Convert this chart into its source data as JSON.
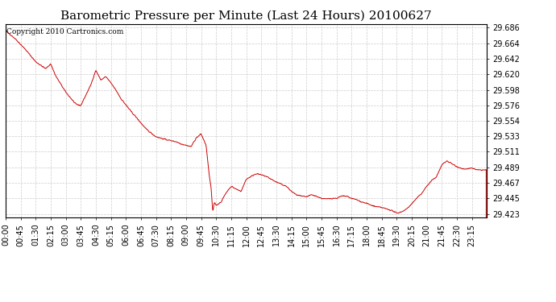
{
  "title": "Barometric Pressure per Minute (Last 24 Hours) 20100627",
  "copyright": "Copyright 2010 Cartronics.com",
  "line_color": "#cc0000",
  "background_color": "#ffffff",
  "grid_color": "#cccccc",
  "yticks": [
    29.423,
    29.445,
    29.467,
    29.489,
    29.511,
    29.533,
    29.554,
    29.576,
    29.598,
    29.62,
    29.642,
    29.664,
    29.686
  ],
  "ylim": [
    29.418,
    29.691
  ],
  "xtick_labels": [
    "00:00",
    "00:45",
    "01:30",
    "02:15",
    "03:00",
    "03:45",
    "04:30",
    "05:15",
    "06:00",
    "06:45",
    "07:30",
    "08:15",
    "09:00",
    "09:45",
    "10:30",
    "11:15",
    "12:00",
    "12:45",
    "13:30",
    "14:15",
    "15:00",
    "15:45",
    "16:30",
    "17:15",
    "18:00",
    "18:45",
    "19:30",
    "20:15",
    "21:00",
    "21:45",
    "22:30",
    "23:15"
  ],
  "title_fontsize": 11,
  "tick_fontsize": 7,
  "copyright_fontsize": 6.5,
  "keypoints": [
    [
      0,
      29.682
    ],
    [
      30,
      29.67
    ],
    [
      60,
      29.655
    ],
    [
      90,
      29.638
    ],
    [
      120,
      29.628
    ],
    [
      135,
      29.635
    ],
    [
      150,
      29.618
    ],
    [
      180,
      29.595
    ],
    [
      210,
      29.578
    ],
    [
      225,
      29.576
    ],
    [
      255,
      29.605
    ],
    [
      270,
      29.626
    ],
    [
      285,
      29.612
    ],
    [
      300,
      29.617
    ],
    [
      315,
      29.608
    ],
    [
      330,
      29.598
    ],
    [
      345,
      29.586
    ],
    [
      375,
      29.568
    ],
    [
      390,
      29.56
    ],
    [
      420,
      29.543
    ],
    [
      450,
      29.532
    ],
    [
      480,
      29.528
    ],
    [
      510,
      29.525
    ],
    [
      525,
      29.522
    ],
    [
      540,
      29.52
    ],
    [
      555,
      29.518
    ],
    [
      570,
      29.53
    ],
    [
      585,
      29.536
    ],
    [
      600,
      29.52
    ],
    [
      610,
      29.475
    ],
    [
      615,
      29.46
    ],
    [
      620,
      29.425
    ],
    [
      625,
      29.44
    ],
    [
      630,
      29.435
    ],
    [
      645,
      29.44
    ],
    [
      660,
      29.453
    ],
    [
      675,
      29.462
    ],
    [
      690,
      29.458
    ],
    [
      705,
      29.455
    ],
    [
      720,
      29.472
    ],
    [
      735,
      29.476
    ],
    [
      750,
      29.48
    ],
    [
      765,
      29.478
    ],
    [
      780,
      29.476
    ],
    [
      795,
      29.472
    ],
    [
      810,
      29.468
    ],
    [
      825,
      29.465
    ],
    [
      840,
      29.462
    ],
    [
      855,
      29.455
    ],
    [
      870,
      29.45
    ],
    [
      885,
      29.448
    ],
    [
      900,
      29.447
    ],
    [
      915,
      29.45
    ],
    [
      930,
      29.448
    ],
    [
      945,
      29.445
    ],
    [
      960,
      29.444
    ],
    [
      975,
      29.445
    ],
    [
      990,
      29.445
    ],
    [
      1005,
      29.448
    ],
    [
      1020,
      29.448
    ],
    [
      1035,
      29.445
    ],
    [
      1050,
      29.443
    ],
    [
      1065,
      29.44
    ],
    [
      1080,
      29.438
    ],
    [
      1095,
      29.435
    ],
    [
      1110,
      29.433
    ],
    [
      1125,
      29.432
    ],
    [
      1140,
      29.43
    ],
    [
      1155,
      29.428
    ],
    [
      1170,
      29.424
    ],
    [
      1185,
      29.426
    ],
    [
      1200,
      29.43
    ],
    [
      1215,
      29.437
    ],
    [
      1230,
      29.445
    ],
    [
      1245,
      29.452
    ],
    [
      1260,
      29.462
    ],
    [
      1275,
      29.47
    ],
    [
      1290,
      29.476
    ],
    [
      1305,
      29.492
    ],
    [
      1320,
      29.498
    ],
    [
      1335,
      29.494
    ],
    [
      1350,
      29.49
    ],
    [
      1365,
      29.487
    ],
    [
      1380,
      29.486
    ],
    [
      1395,
      29.488
    ],
    [
      1410,
      29.485
    ],
    [
      1439,
      29.485
    ]
  ]
}
